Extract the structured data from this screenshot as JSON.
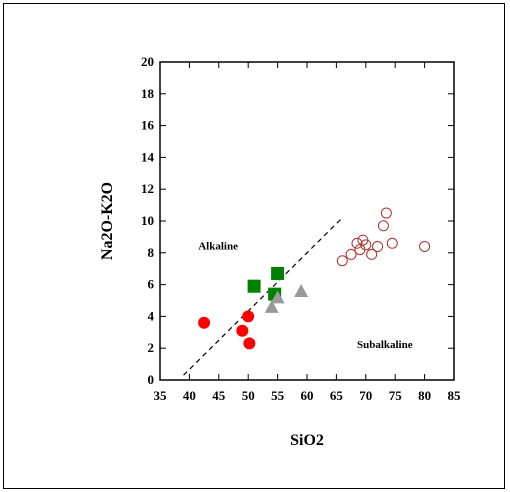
{
  "chart_data": {
    "type": "scatter",
    "title": "",
    "xlabel": "SiO2",
    "ylabel": "Na2O-K2O",
    "xlim": [
      35,
      85
    ],
    "ylim": [
      0,
      20
    ],
    "xticks": [
      35,
      40,
      45,
      50,
      55,
      60,
      65,
      70,
      75,
      80,
      85
    ],
    "yticks": [
      0,
      2,
      4,
      6,
      8,
      10,
      12,
      14,
      16,
      18,
      20
    ],
    "grid": false,
    "legend": "none",
    "annotations": [
      {
        "text": "Alkaline",
        "x": 41.5,
        "y": 8.2
      },
      {
        "text": "Subalkaline",
        "x": 68.5,
        "y": 2.0
      }
    ],
    "divider_line": {
      "x": [
        39,
        66
      ],
      "y": [
        0.3,
        10.2
      ],
      "style": "dashed"
    },
    "series": [
      {
        "marker": "circle-filled",
        "color": "#ff0000",
        "points": [
          [
            42.5,
            3.6
          ],
          [
            49,
            3.1
          ],
          [
            50,
            4.0
          ],
          [
            50.2,
            2.3
          ]
        ]
      },
      {
        "marker": "square-filled",
        "color": "#008000",
        "points": [
          [
            51,
            5.9
          ],
          [
            54.5,
            5.4
          ],
          [
            55,
            6.7
          ]
        ]
      },
      {
        "marker": "triangle-filled",
        "color": "#999999",
        "points": [
          [
            54,
            4.6
          ],
          [
            55,
            5.2
          ],
          [
            59,
            5.6
          ]
        ]
      },
      {
        "marker": "circle-open",
        "color": "#aa3333",
        "points": [
          [
            66,
            7.5
          ],
          [
            67.5,
            7.9
          ],
          [
            68.5,
            8.6
          ],
          [
            69,
            8.2
          ],
          [
            69.5,
            8.8
          ],
          [
            70,
            8.5
          ],
          [
            71,
            7.9
          ],
          [
            72,
            8.4
          ],
          [
            73,
            9.7
          ],
          [
            73.5,
            10.5
          ],
          [
            74.5,
            8.6
          ],
          [
            80,
            8.4
          ]
        ]
      }
    ]
  }
}
